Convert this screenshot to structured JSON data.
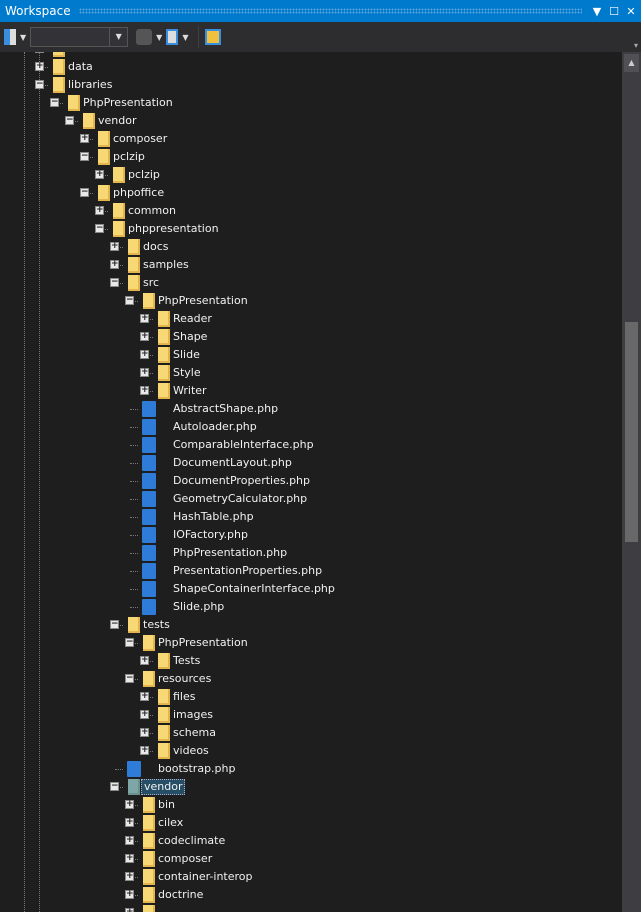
{
  "window": {
    "title": "Workspace"
  },
  "toolbar": {
    "search_value": ""
  },
  "tree": [
    {
      "label": "",
      "level": 0,
      "type": "folder",
      "state": "expanded"
    },
    {
      "label": "data",
      "level": 0,
      "type": "folder",
      "state": "collapsed"
    },
    {
      "label": "libraries",
      "level": 0,
      "type": "folder",
      "state": "expanded"
    },
    {
      "label": "PhpPresentation",
      "level": 1,
      "type": "folder",
      "state": "expanded"
    },
    {
      "label": "vendor",
      "level": 2,
      "type": "folder",
      "state": "expanded"
    },
    {
      "label": "composer",
      "level": 3,
      "type": "folder",
      "state": "collapsed"
    },
    {
      "label": "pclzip",
      "level": 3,
      "type": "folder",
      "state": "expanded"
    },
    {
      "label": "pclzip",
      "level": 4,
      "type": "folder",
      "state": "collapsed"
    },
    {
      "label": "phpoffice",
      "level": 3,
      "type": "folder",
      "state": "expanded"
    },
    {
      "label": "common",
      "level": 4,
      "type": "folder",
      "state": "collapsed"
    },
    {
      "label": "phppresentation",
      "level": 4,
      "type": "folder",
      "state": "expanded"
    },
    {
      "label": "docs",
      "level": 5,
      "type": "folder",
      "state": "collapsed"
    },
    {
      "label": "samples",
      "level": 5,
      "type": "folder",
      "state": "collapsed"
    },
    {
      "label": "src",
      "level": 5,
      "type": "folder",
      "state": "expanded"
    },
    {
      "label": "PhpPresentation",
      "level": 6,
      "type": "folder",
      "state": "expanded"
    },
    {
      "label": "Reader",
      "level": 7,
      "type": "folder",
      "state": "collapsed"
    },
    {
      "label": "Shape",
      "level": 7,
      "type": "folder",
      "state": "collapsed"
    },
    {
      "label": "Slide",
      "level": 7,
      "type": "folder",
      "state": "collapsed"
    },
    {
      "label": "Style",
      "level": 7,
      "type": "folder",
      "state": "collapsed"
    },
    {
      "label": "Writer",
      "level": 7,
      "type": "folder",
      "state": "collapsed"
    },
    {
      "label": "AbstractShape.php",
      "level": 7,
      "type": "php"
    },
    {
      "label": "Autoloader.php",
      "level": 7,
      "type": "php"
    },
    {
      "label": "ComparableInterface.php",
      "level": 7,
      "type": "php"
    },
    {
      "label": "DocumentLayout.php",
      "level": 7,
      "type": "php"
    },
    {
      "label": "DocumentProperties.php",
      "level": 7,
      "type": "php"
    },
    {
      "label": "GeometryCalculator.php",
      "level": 7,
      "type": "php"
    },
    {
      "label": "HashTable.php",
      "level": 7,
      "type": "php"
    },
    {
      "label": "IOFactory.php",
      "level": 7,
      "type": "php"
    },
    {
      "label": "PhpPresentation.php",
      "level": 7,
      "type": "php"
    },
    {
      "label": "PresentationProperties.php",
      "level": 7,
      "type": "php"
    },
    {
      "label": "ShapeContainerInterface.php",
      "level": 7,
      "type": "php"
    },
    {
      "label": "Slide.php",
      "level": 7,
      "type": "php"
    },
    {
      "label": "tests",
      "level": 5,
      "type": "folder",
      "state": "expanded"
    },
    {
      "label": "PhpPresentation",
      "level": 6,
      "type": "folder",
      "state": "expanded"
    },
    {
      "label": "Tests",
      "level": 7,
      "type": "folder",
      "state": "collapsed"
    },
    {
      "label": "resources",
      "level": 6,
      "type": "folder",
      "state": "expanded"
    },
    {
      "label": "files",
      "level": 7,
      "type": "folder",
      "state": "collapsed"
    },
    {
      "label": "images",
      "level": 7,
      "type": "folder",
      "state": "collapsed"
    },
    {
      "label": "schema",
      "level": 7,
      "type": "folder",
      "state": "collapsed"
    },
    {
      "label": "videos",
      "level": 7,
      "type": "folder",
      "state": "collapsed"
    },
    {
      "label": "bootstrap.php",
      "level": 6,
      "type": "php"
    },
    {
      "label": "vendor",
      "level": 5,
      "type": "folder",
      "state": "expanded",
      "selected": true
    },
    {
      "label": "bin",
      "level": 6,
      "type": "folder",
      "state": "collapsed"
    },
    {
      "label": "cilex",
      "level": 6,
      "type": "folder",
      "state": "collapsed"
    },
    {
      "label": "codeclimate",
      "level": 6,
      "type": "folder",
      "state": "collapsed"
    },
    {
      "label": "composer",
      "level": 6,
      "type": "folder",
      "state": "collapsed"
    },
    {
      "label": "container-interop",
      "level": 6,
      "type": "folder",
      "state": "collapsed"
    },
    {
      "label": "doctrine",
      "level": 6,
      "type": "folder",
      "state": "collapsed"
    },
    {
      "label": "",
      "level": 6,
      "type": "folder",
      "state": "collapsed"
    }
  ]
}
